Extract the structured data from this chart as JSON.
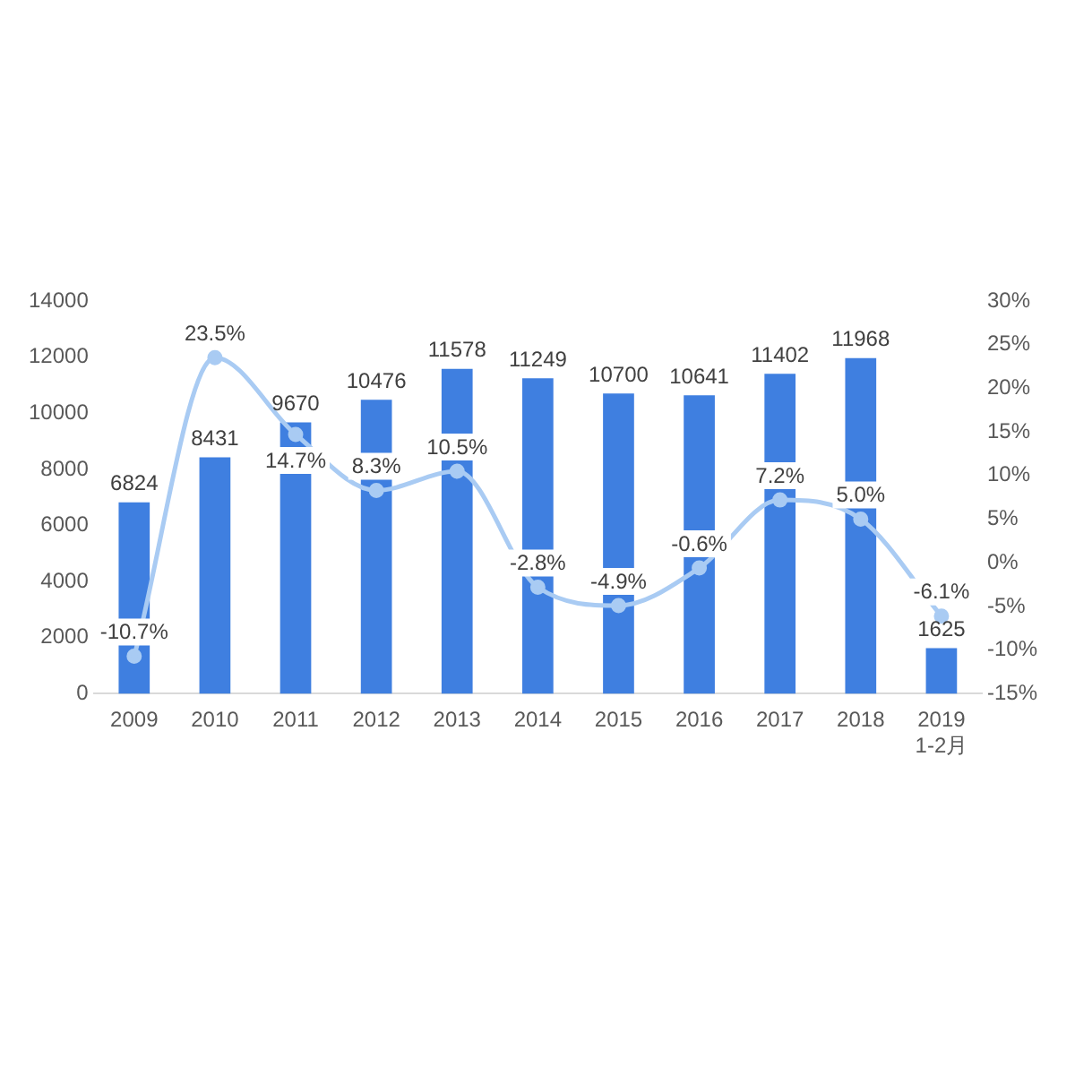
{
  "chart_data": {
    "type": "bar",
    "categories": [
      "2009",
      "2010",
      "2011",
      "2012",
      "2013",
      "2014",
      "2015",
      "2016",
      "2017",
      "2018",
      "2019 1-2月"
    ],
    "series": [
      {
        "color": "#3f7fe0",
        "values": [
          6824,
          8431,
          9670,
          10476,
          11578,
          11249,
          10700,
          10641,
          11402,
          11968,
          1625
        ],
        "value_labels": [
          "6824",
          "8431",
          "9670",
          "10476",
          "11578",
          "11249",
          "10700",
          "10641",
          "11402",
          "11968",
          "1625"
        ]
      },
      {
        "type": "line",
        "axis": "y2",
        "color": "#a9cbf3",
        "values": [
          -10.7,
          23.5,
          14.7,
          8.3,
          10.5,
          -2.8,
          -4.9,
          -0.6,
          7.2,
          5.0,
          -6.1
        ],
        "value_labels": [
          "-10.7%",
          "23.5%",
          "14.7%",
          "8.3%",
          "10.5%",
          "-2.8%",
          "-4.9%",
          "-0.6%",
          "7.2%",
          "5.0%",
          "-6.1%"
        ]
      }
    ],
    "ylim": [
      0,
      14000
    ],
    "yticks": [
      0,
      2000,
      4000,
      6000,
      8000,
      10000,
      12000,
      14000
    ],
    "y2lim": [
      -15,
      30
    ],
    "y2ticks": [
      {
        "value": -15,
        "label": "-15%"
      },
      {
        "value": -10,
        "label": "-10%"
      },
      {
        "value": -5,
        "label": "-5%"
      },
      {
        "value": 0,
        "label": "0%"
      },
      {
        "value": 5,
        "label": "5%"
      },
      {
        "value": 10,
        "label": "10%"
      },
      {
        "value": 15,
        "label": "15%"
      },
      {
        "value": 20,
        "label": "20%"
      },
      {
        "value": 25,
        "label": "25%"
      },
      {
        "value": 30,
        "label": "30%"
      }
    ],
    "grid": false,
    "legend": false,
    "marker": "circle"
  }
}
